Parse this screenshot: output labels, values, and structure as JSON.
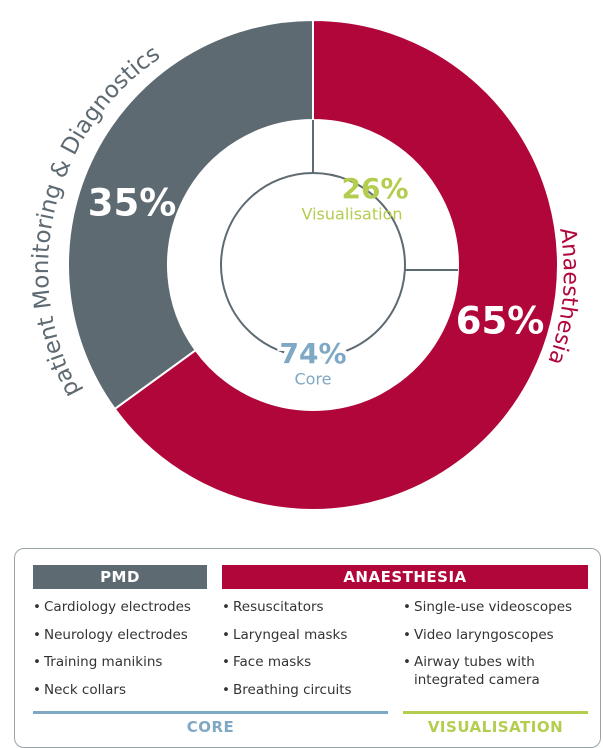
{
  "chart_data": [
    {
      "type": "donut",
      "categories": [
        "patient Monitoring & Diagnostics",
        "Anaesthesia"
      ],
      "values": [
        35,
        65
      ],
      "value_labels": [
        "35%",
        "65%"
      ],
      "colors": [
        "#5e6a72",
        "#b0063a"
      ]
    },
    {
      "type": "arc",
      "categories": [
        "Visualisation",
        "Core"
      ],
      "values": [
        26,
        74
      ],
      "value_labels": [
        "26%",
        "74%"
      ],
      "colors": [
        "#b3cd4f",
        "#7ea8c3"
      ]
    }
  ],
  "table": {
    "headers": [
      "PMD",
      "ANAESTHESIA"
    ],
    "columns": [
      [
        "Cardiology electrodes",
        "Neurology electrodes",
        "Training manikins",
        "Neck collars"
      ],
      [
        "Resuscitators",
        "Laryngeal masks",
        "Face masks",
        "Breathing circuits"
      ],
      [
        "Single-use videoscopes",
        "Video laryngoscopes",
        "Airway tubes with integrated camera"
      ]
    ],
    "footers": [
      "CORE",
      "VISUALISATION"
    ]
  }
}
